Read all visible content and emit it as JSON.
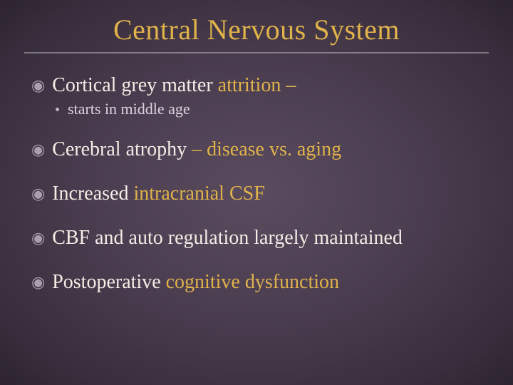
{
  "colors": {
    "title": "#e0b34a",
    "bullet_glyph": "#a99fb0",
    "body_text": "#f2eee6",
    "accent_text": "#e0b34a",
    "sub_text": "#d9d3df",
    "sub_dot": "#bfb6c7"
  },
  "title": "Central Nervous System",
  "bullets": [
    {
      "segments": [
        {
          "text": "Cortical grey matter",
          "color_key": "body_text"
        },
        {
          "text": "  attrition –",
          "color_key": "accent_text"
        }
      ],
      "sub": "starts in middle age"
    },
    {
      "segments": [
        {
          "text": "Cerebral atrophy",
          "color_key": "body_text"
        },
        {
          "text": " – disease vs. aging",
          "color_key": "accent_text"
        }
      ]
    },
    {
      "segments": [
        {
          "text": "Increased",
          "color_key": "body_text"
        },
        {
          "text": " intracranial CSF",
          "color_key": "accent_text"
        }
      ]
    },
    {
      "segments": [
        {
          "text": "CBF and auto regulation largely maintained",
          "color_key": "body_text"
        }
      ]
    },
    {
      "segments": [
        {
          "text": "Postoperative",
          "color_key": "body_text"
        },
        {
          "text": " cognitive dysfunction",
          "color_key": "accent_text"
        }
      ]
    }
  ],
  "bullet_glyph": "◉"
}
